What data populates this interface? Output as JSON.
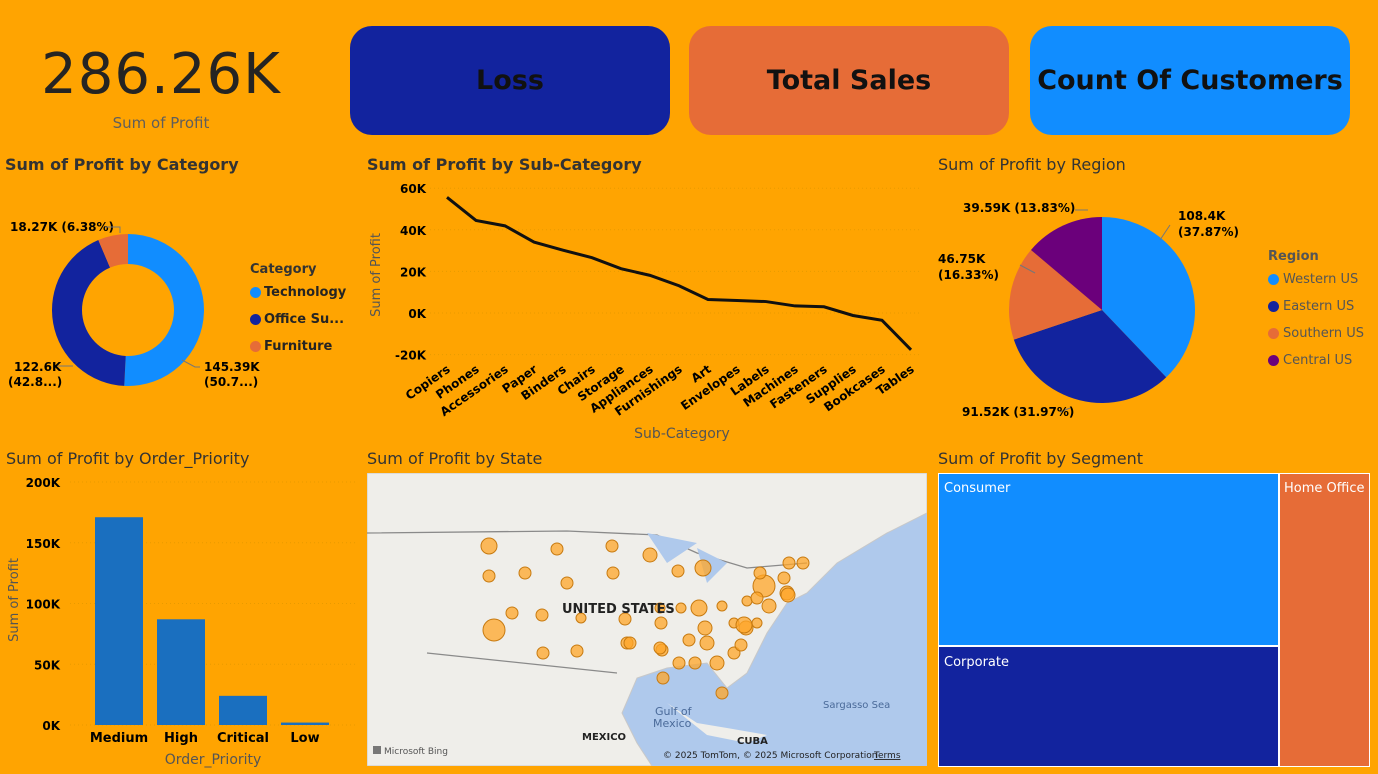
{
  "kpi": {
    "value": "286.26K",
    "label": "Sum of Profit"
  },
  "cards": [
    {
      "label": "Loss",
      "color": "#12239E"
    },
    {
      "label": "Total Sales",
      "color": "#E66C37"
    },
    {
      "label": "Count Of Customers",
      "color": "#118DFF"
    }
  ],
  "category_chart": {
    "title": "Sum of Profit by Category",
    "legend_title": "Category",
    "chart_data": {
      "type": "donut",
      "categories": [
        "Technology",
        "Office Su...",
        "Furniture"
      ],
      "values": [
        145.39,
        122.6,
        18.27
      ],
      "colors": [
        "#118DFF",
        "#12239E",
        "#E66C37"
      ],
      "labels": [
        "145.39K",
        "(50.7...)",
        "122.6K",
        "(42.8...)",
        "18.27K (6.38%)"
      ]
    }
  },
  "subcat_chart": {
    "title": "Sum of Profit by Sub-Category",
    "chart_data": {
      "type": "line",
      "categories": [
        "Copiers",
        "Phones",
        "Accessories",
        "Paper",
        "Binders",
        "Chairs",
        "Storage",
        "Appliances",
        "Furnishings",
        "Art",
        "Envelopes",
        "Labels",
        "Machines",
        "Fasteners",
        "Supplies",
        "Bookcases",
        "Tables"
      ],
      "values": [
        55.6,
        44.5,
        41.9,
        34.1,
        30.2,
        26.6,
        21.3,
        18.1,
        13.1,
        6.5,
        6.0,
        5.5,
        3.4,
        3.0,
        -1.2,
        -3.5,
        -17.7
      ],
      "xlabel": "Sub-Category",
      "ylabel": "Sum of Profit",
      "yticks": [
        "60K",
        "40K",
        "20K",
        "0K",
        "-20K"
      ],
      "ylim": [
        -20,
        60
      ]
    }
  },
  "region_chart": {
    "title": "Sum of Profit by Region",
    "legend_title": "Region",
    "chart_data": {
      "type": "pie",
      "categories": [
        "Western US",
        "Eastern US",
        "Southern US",
        "Central US"
      ],
      "values": [
        108.4,
        91.52,
        46.75,
        39.59
      ],
      "colors": [
        "#118DFF",
        "#12239E",
        "#E66C37",
        "#6B007B"
      ],
      "labels": [
        "108.4K",
        "(37.87%)",
        "91.52K (31.97%)",
        "46.75K",
        "(16.33%)",
        "39.59K (13.83%)"
      ]
    }
  },
  "priority_chart": {
    "title": "Sum of Profit by Order_Priority",
    "chart_data": {
      "type": "bar",
      "categories": [
        "Medium",
        "High",
        "Critical",
        "Low"
      ],
      "values": [
        171,
        87,
        24,
        2
      ],
      "xlabel": "Order_Priority",
      "ylabel": "Sum of Profit",
      "yticks": [
        "200K",
        "150K",
        "100K",
        "50K",
        "0K"
      ],
      "ylim": [
        0,
        200
      ],
      "color": "#1A6FBF"
    }
  },
  "state_map": {
    "title": "Sum of Profit by State",
    "labels": {
      "country": "UNITED STATES",
      "gulf": "Gulf of",
      "gulf2": "Mexico",
      "mexico": "MEXICO",
      "cuba": "CUBA",
      "sea": "Sargasso Sea"
    },
    "attribution": "© 2025 TomTom, © 2025 Microsoft Corporation",
    "terms": "Terms",
    "brand": "Microsoft Bing"
  },
  "segment_chart": {
    "title": "Sum of Profit by Segment",
    "segments": [
      "Consumer",
      "Corporate",
      "Home Office"
    ],
    "colors": [
      "#118DFF",
      "#12239E",
      "#E66C37"
    ]
  }
}
